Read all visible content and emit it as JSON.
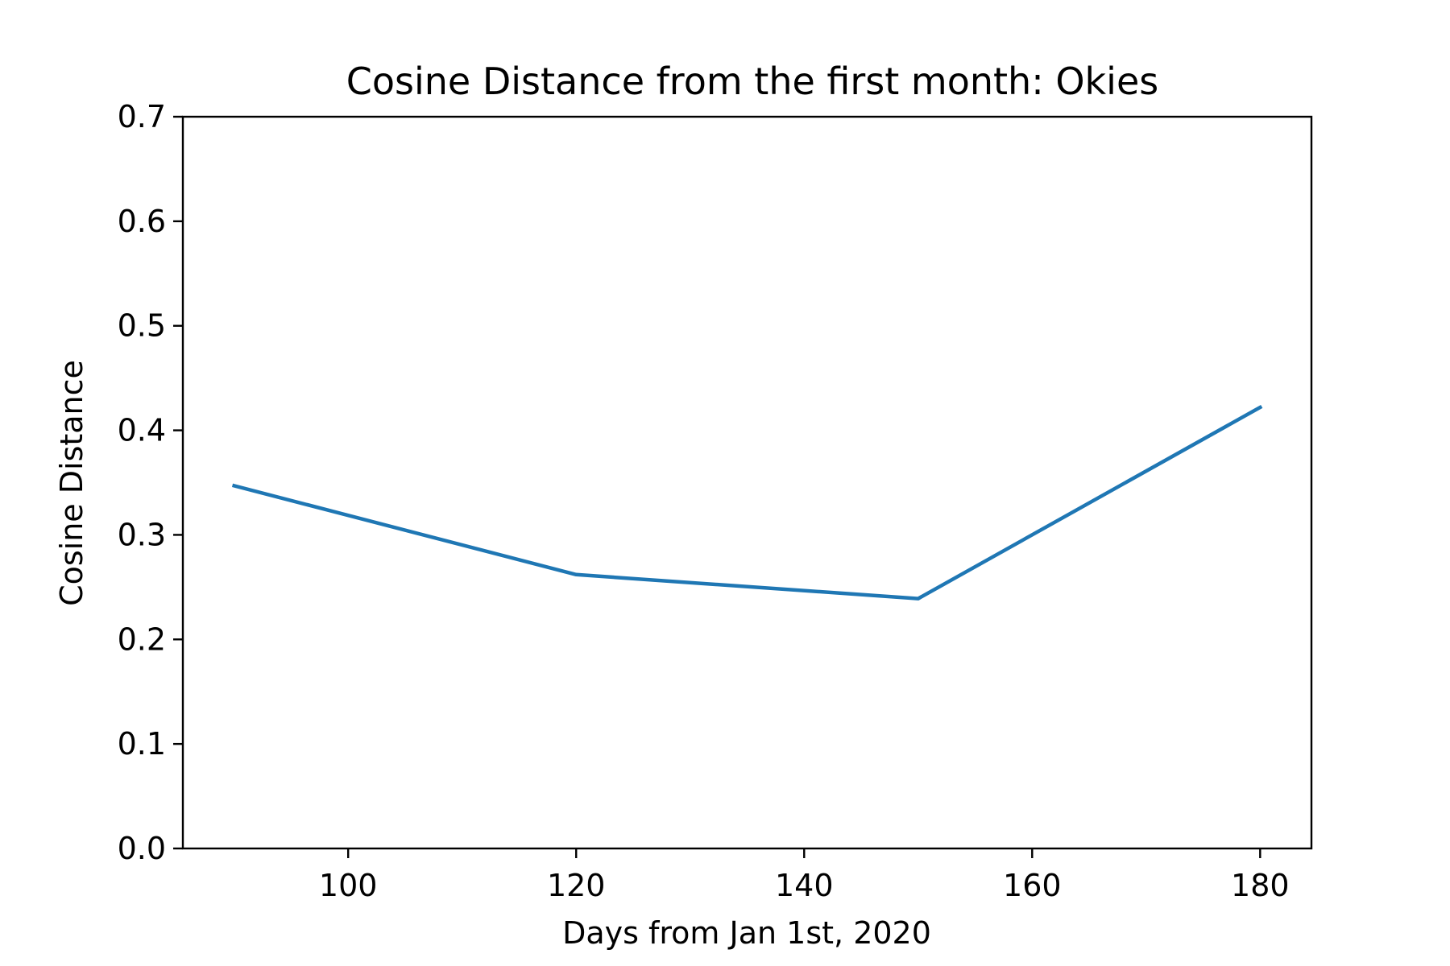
{
  "chart_data": {
    "type": "line",
    "title": "Cosine Distance from the first month: Okies",
    "xlabel": "Days from Jan 1st, 2020",
    "ylabel": "Cosine Distance",
    "xlim": [
      85.5,
      184.5
    ],
    "ylim": [
      0.0,
      0.7
    ],
    "xticks": [
      100,
      120,
      140,
      160,
      180
    ],
    "xtick_labels": [
      "100",
      "120",
      "140",
      "160",
      "180"
    ],
    "yticks": [
      0.0,
      0.1,
      0.2,
      0.3,
      0.4,
      0.5,
      0.6,
      0.7
    ],
    "ytick_labels": [
      "0.0",
      "0.1",
      "0.2",
      "0.3",
      "0.4",
      "0.5",
      "0.6",
      "0.7"
    ],
    "grid": false,
    "legend": "none",
    "series": [
      {
        "color": "#1f77b4",
        "x": [
          90,
          120,
          150,
          180
        ],
        "y": [
          0.347,
          0.262,
          0.239,
          0.422
        ]
      }
    ]
  }
}
